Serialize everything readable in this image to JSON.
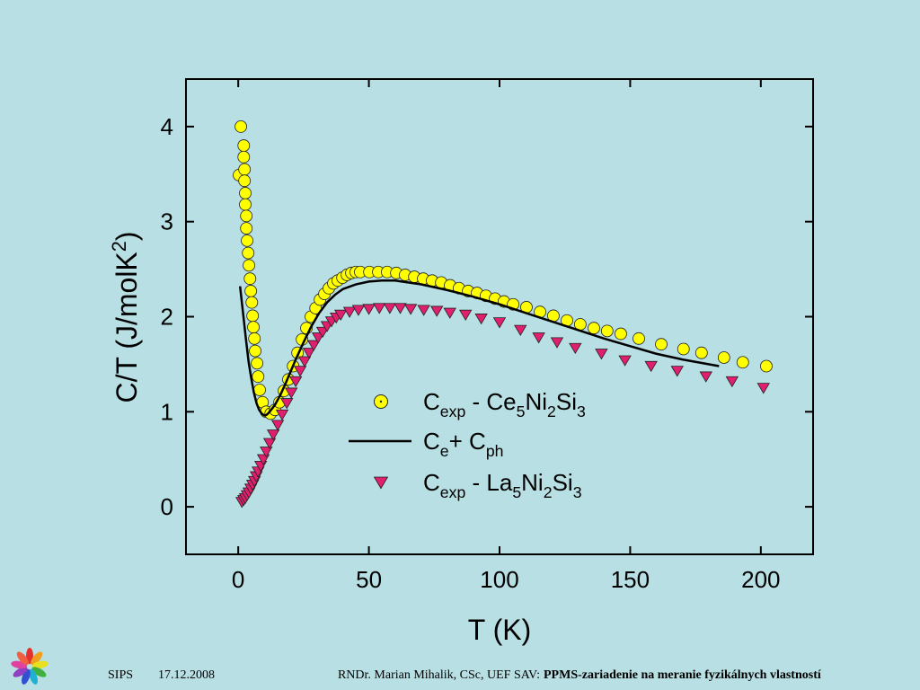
{
  "chart_data": {
    "type": "scatter",
    "xlabel": "T (K)",
    "ylabel": "C/T (J/molK2)",
    "xlim": [
      -20,
      220
    ],
    "ylim": [
      -0.5,
      4.5
    ],
    "xticks": [
      0,
      50,
      100,
      150,
      200
    ],
    "yticks": [
      0,
      1,
      2,
      3,
      4
    ],
    "series": [
      {
        "name": "Cexp - Ce5Ni2Si3",
        "color": "#ffff00",
        "marker": "circle",
        "x": [
          0.3,
          1.0,
          2.1,
          2.1,
          2.4,
          2.4,
          2.7,
          2.7,
          3.1,
          3.1,
          3.4,
          3.8,
          4.1,
          4.5,
          4.8,
          5.2,
          5.5,
          5.8,
          6.2,
          6.5,
          7.2,
          7.6,
          8.2,
          9.3,
          10.7,
          12.4,
          14.1,
          15.8,
          17.5,
          19.2,
          21.0,
          22.7,
          24.4,
          26.1,
          27.8,
          29.6,
          31.3,
          33.0,
          34.7,
          36.4,
          38.1,
          39.9,
          41.6,
          43.3,
          45.0,
          46.7,
          50.2,
          53.6,
          57.0,
          60.5,
          63.9,
          67.4,
          70.8,
          74.2,
          77.7,
          81.1,
          84.5,
          88.0,
          91.4,
          94.8,
          98.3,
          101.7,
          105.2,
          110.3,
          115.5,
          120.6,
          125.8,
          130.9,
          136.1,
          141.2,
          146.4,
          153.3,
          161.9,
          170.4,
          177.3,
          185.9,
          193.1,
          202.1
        ],
        "values": [
          3.49,
          4.0,
          3.8,
          3.68,
          3.55,
          3.43,
          3.3,
          3.18,
          3.06,
          2.93,
          2.8,
          2.67,
          2.54,
          2.4,
          2.27,
          2.15,
          2.01,
          1.89,
          1.77,
          1.64,
          1.51,
          1.37,
          1.23,
          1.1,
          1.0,
          0.98,
          1.02,
          1.1,
          1.22,
          1.34,
          1.48,
          1.62,
          1.76,
          1.88,
          2.0,
          2.09,
          2.18,
          2.24,
          2.3,
          2.35,
          2.38,
          2.41,
          2.44,
          2.46,
          2.47,
          2.47,
          2.47,
          2.47,
          2.47,
          2.46,
          2.44,
          2.42,
          2.4,
          2.38,
          2.36,
          2.33,
          2.3,
          2.27,
          2.25,
          2.22,
          2.19,
          2.16,
          2.13,
          2.1,
          2.05,
          2.01,
          1.96,
          1.92,
          1.88,
          1.85,
          1.82,
          1.77,
          1.71,
          1.66,
          1.62,
          1.57,
          1.52,
          1.48
        ]
      },
      {
        "name": "Ce+ Cph",
        "color": "#000000",
        "marker": "line",
        "x": [
          0.7,
          2,
          3,
          4,
          5,
          6,
          7,
          8,
          9,
          10,
          11,
          12,
          14,
          16,
          18,
          20,
          22,
          25,
          28,
          31,
          34,
          37,
          40,
          45,
          50,
          55,
          60,
          70,
          80,
          90,
          100,
          110,
          120,
          130,
          140,
          150,
          160,
          170,
          184
        ],
        "values": [
          2.32,
          2.0,
          1.75,
          1.52,
          1.35,
          1.2,
          1.09,
          1.02,
          0.98,
          0.96,
          0.97,
          1.0,
          1.07,
          1.17,
          1.29,
          1.42,
          1.55,
          1.73,
          1.9,
          2.04,
          2.15,
          2.23,
          2.29,
          2.34,
          2.37,
          2.38,
          2.38,
          2.34,
          2.28,
          2.21,
          2.13,
          2.04,
          1.95,
          1.86,
          1.77,
          1.69,
          1.61,
          1.55,
          1.48
        ]
      },
      {
        "name": "Cexp - La5Ni2Si3",
        "color": "#e0206e",
        "marker": "triangle",
        "x": [
          1.4,
          2.1,
          2.7,
          3.4,
          4.1,
          4.8,
          5.5,
          6.2,
          6.9,
          7.6,
          8.6,
          9.6,
          10.7,
          12.0,
          13.4,
          15.1,
          16.8,
          18.6,
          20.3,
          22.0,
          23.7,
          25.4,
          27.1,
          28.9,
          30.6,
          32.3,
          34.0,
          35.7,
          37.5,
          39.2,
          42.6,
          46.0,
          50.0,
          54.0,
          58.0,
          62.0,
          66.0,
          71.0,
          76.0,
          81.0,
          87.0,
          93.0,
          100,
          108,
          115,
          122,
          129,
          139,
          148,
          158,
          168,
          179,
          189,
          201
        ],
        "values": [
          0.05,
          0.07,
          0.09,
          0.12,
          0.15,
          0.19,
          0.23,
          0.27,
          0.32,
          0.37,
          0.43,
          0.5,
          0.58,
          0.67,
          0.76,
          0.86,
          0.97,
          1.09,
          1.2,
          1.32,
          1.43,
          1.53,
          1.62,
          1.7,
          1.78,
          1.84,
          1.9,
          1.95,
          1.99,
          2.02,
          2.05,
          2.07,
          2.08,
          2.09,
          2.09,
          2.09,
          2.08,
          2.07,
          2.06,
          2.04,
          2.02,
          1.98,
          1.94,
          1.86,
          1.78,
          1.73,
          1.67,
          1.61,
          1.54,
          1.48,
          1.43,
          1.37,
          1.32,
          1.25
        ]
      }
    ]
  },
  "footer": {
    "event": "SIPS",
    "date": "17.12.2008",
    "author": "RNDr. Marian Mihalik, CSc, UEF SAV:",
    "topic": "PPMS-zariadenie na meranie fyzikálnych vlastností"
  }
}
